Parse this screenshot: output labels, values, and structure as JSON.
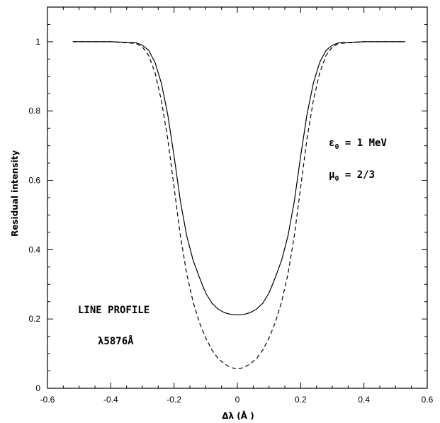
{
  "chart_data": {
    "type": "line",
    "title": "",
    "xlabel": "Δλ (Å )",
    "ylabel": "Residual intensity",
    "xlim": [
      -0.6,
      0.6
    ],
    "ylim": [
      0,
      1.1
    ],
    "x_ticks": [
      "-0.6",
      "-0.4",
      "-0.2",
      "0",
      "0.2",
      "0.4",
      "0.6"
    ],
    "y_ticks": [
      "0",
      "0.2",
      "0.4",
      "0.6",
      "0.8",
      "1"
    ],
    "grid": false,
    "series": [
      {
        "style": "solid",
        "x": [
          -0.52,
          -0.4,
          -0.32,
          -0.3,
          -0.28,
          -0.26,
          -0.24,
          -0.22,
          -0.2,
          -0.18,
          -0.16,
          -0.14,
          -0.12,
          -0.1,
          -0.08,
          -0.06,
          -0.04,
          -0.02,
          0,
          0.02,
          0.04,
          0.06,
          0.08,
          0.1,
          0.12,
          0.14,
          0.16,
          0.18,
          0.2,
          0.22,
          0.24,
          0.26,
          0.28,
          0.3,
          0.32,
          0.4,
          0.53
        ],
        "y": [
          1.0,
          1.0,
          0.997,
          0.99,
          0.975,
          0.94,
          0.88,
          0.79,
          0.67,
          0.54,
          0.44,
          0.37,
          0.32,
          0.275,
          0.245,
          0.228,
          0.218,
          0.213,
          0.212,
          0.213,
          0.218,
          0.228,
          0.245,
          0.275,
          0.32,
          0.37,
          0.44,
          0.54,
          0.67,
          0.79,
          0.88,
          0.94,
          0.975,
          0.99,
          0.997,
          1.0,
          1.0
        ]
      },
      {
        "style": "dashed",
        "x": [
          -0.52,
          -0.4,
          -0.32,
          -0.3,
          -0.28,
          -0.26,
          -0.24,
          -0.22,
          -0.2,
          -0.18,
          -0.16,
          -0.14,
          -0.12,
          -0.1,
          -0.08,
          -0.06,
          -0.04,
          -0.02,
          0,
          0.02,
          0.04,
          0.06,
          0.08,
          0.1,
          0.12,
          0.14,
          0.16,
          0.18,
          0.2,
          0.22,
          0.24,
          0.26,
          0.28,
          0.3,
          0.32,
          0.4,
          0.53
        ],
        "y": [
          1.0,
          1.0,
          0.995,
          0.985,
          0.96,
          0.91,
          0.83,
          0.72,
          0.58,
          0.44,
          0.33,
          0.25,
          0.19,
          0.145,
          0.11,
          0.085,
          0.07,
          0.06,
          0.055,
          0.06,
          0.07,
          0.085,
          0.11,
          0.145,
          0.19,
          0.25,
          0.33,
          0.44,
          0.58,
          0.72,
          0.83,
          0.91,
          0.96,
          0.985,
          0.995,
          1.0,
          1.0
        ]
      }
    ],
    "annotations": {
      "line_profile": "LINE PROFILE",
      "wavelength": "λ5876Å",
      "epsilon_symbol": "ε",
      "epsilon_sub": "0",
      "epsilon_value": " = 1 MeV",
      "mu_symbol": "μ",
      "mu_sub": "0",
      "mu_value": " = 2/3"
    }
  }
}
